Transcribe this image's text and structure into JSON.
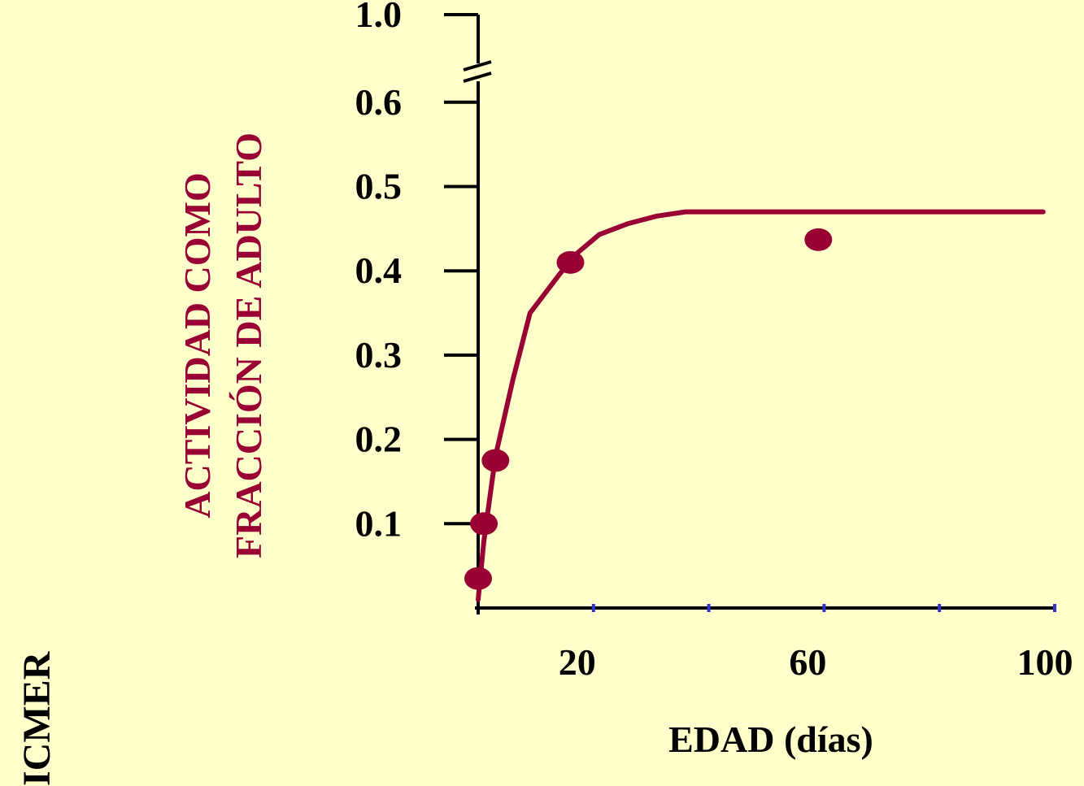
{
  "watermark": "ICMER",
  "chart_data": {
    "type": "scatter",
    "xlabel": "EDAD (días)",
    "ylabel_lines": [
      "ACTIVIDAD COMO",
      "FRACCIÓN DE ADULTO"
    ],
    "xlim": [
      0,
      100
    ],
    "ylim": [
      0,
      1.0
    ],
    "axis_break": {
      "between": [
        0.6,
        1.0
      ]
    },
    "x_ticks": [
      0,
      20,
      40,
      60,
      80,
      100
    ],
    "x_tick_labels": [
      {
        "value": 20,
        "label": "20"
      },
      {
        "value": 60,
        "label": "60"
      },
      {
        "value": 100,
        "label": "100"
      }
    ],
    "y_tick_labels": [
      "0.1",
      "0.2",
      "0.3",
      "0.4",
      "0.5",
      "0.6",
      "1.0"
    ],
    "y_tick_values": [
      0.1,
      0.2,
      0.3,
      0.4,
      0.5,
      0.6,
      1.0
    ],
    "points": [
      {
        "x": 0,
        "y": 0.035
      },
      {
        "x": 1,
        "y": 0.1
      },
      {
        "x": 3,
        "y": 0.175
      },
      {
        "x": 16,
        "y": 0.41
      },
      {
        "x": 59,
        "y": 0.437
      }
    ],
    "fit_curve": [
      {
        "x": 0,
        "y": 0.01
      },
      {
        "x": 1,
        "y": 0.08
      },
      {
        "x": 3,
        "y": 0.18
      },
      {
        "x": 6,
        "y": 0.27
      },
      {
        "x": 9,
        "y": 0.35
      },
      {
        "x": 14,
        "y": 0.395
      },
      {
        "x": 17,
        "y": 0.42
      },
      {
        "x": 21,
        "y": 0.443
      },
      {
        "x": 26,
        "y": 0.456
      },
      {
        "x": 31,
        "y": 0.465
      },
      {
        "x": 36,
        "y": 0.47
      },
      {
        "x": 50,
        "y": 0.47
      },
      {
        "x": 98,
        "y": 0.47
      }
    ],
    "colors": {
      "background": "#FFFFCC",
      "series": "#990033",
      "axis": "#000000",
      "minor_tick": "#3333CC"
    },
    "grid": false,
    "legend": "none"
  }
}
